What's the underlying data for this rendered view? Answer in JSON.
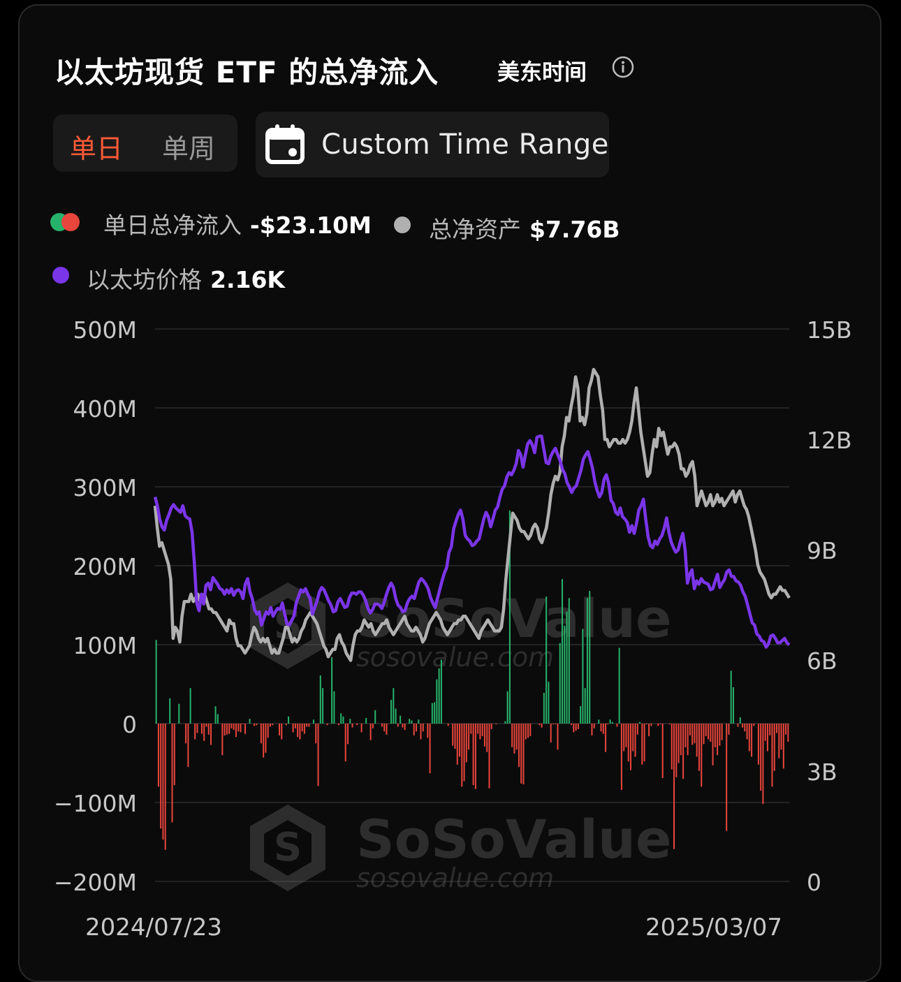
{
  "header": {
    "title": "以太坊现货 ETF 的总净流入",
    "timezone": "美东时间"
  },
  "tabs": [
    {
      "label": "单日",
      "active": true
    },
    {
      "label": "单周",
      "active": false
    }
  ],
  "custom_range": {
    "label": "Custom Time Range"
  },
  "legend": {
    "daily": {
      "label": "单日总净流入",
      "value": "-$23.10M"
    },
    "assets": {
      "label": "总净资产",
      "value": "$7.76B"
    },
    "price": {
      "label": "以太坊价格",
      "value": "2.16K"
    }
  },
  "watermark": {
    "brand": "SoSoValue",
    "site": "sosovalue.com"
  },
  "colors": {
    "positive": "#27b26b",
    "negative": "#e8453c",
    "assets_line": "#b0b0b0",
    "price_line": "#7b35e8",
    "active_tab": "#ff5a36"
  },
  "chart_data": {
    "type": "bar",
    "x_start": "2024/07/23",
    "x_end": "2025/03/07",
    "left_axis": {
      "ticks": [
        "500M",
        "400M",
        "300M",
        "200M",
        "100M",
        "0",
        "−100M",
        "−200M"
      ],
      "ylim": [
        -200,
        500
      ],
      "unit": "M"
    },
    "right_axis": {
      "ticks": [
        "15B",
        "12B",
        "9B",
        "6B",
        "3B",
        "0"
      ],
      "ylim": [
        0,
        15
      ],
      "unit": "B"
    },
    "grid": true,
    "series": [
      {
        "kind": "bar",
        "values": [
          106,
          -80,
          -133,
          -147,
          -160,
          0,
          32,
          -125,
          -78,
          0,
          25,
          0,
          0,
          -25,
          -55,
          45,
          0,
          -20,
          -12,
          0,
          -13,
          -22,
          -4,
          -14,
          -27,
          0,
          22,
          12,
          0,
          -40,
          -15,
          -14,
          -13,
          -6,
          -8,
          -17,
          -10,
          -11,
          -1,
          -13,
          0,
          6,
          0,
          -3,
          -2,
          0,
          -25,
          -43,
          -37,
          -18,
          -4,
          -2,
          0,
          0,
          -15,
          -20,
          0,
          -2,
          9,
          0,
          -11,
          -6,
          -17,
          -20,
          -10,
          -13,
          -4,
          -4,
          0,
          5,
          -25,
          -79,
          61,
          45,
          0,
          -2,
          0,
          84,
          41,
          0,
          -2,
          13,
          9,
          -48,
          -26,
          6,
          -5,
          0,
          -2,
          0,
          -11,
          0,
          7,
          0,
          -21,
          -6,
          17,
          0,
          0,
          -4,
          -10,
          -14,
          0,
          30,
          45,
          19,
          -4,
          10,
          -5,
          -8,
          0,
          6,
          4,
          -15,
          -10,
          5,
          -20,
          -10,
          0,
          -18,
          -63,
          26,
          27,
          56,
          70,
          81,
          0,
          0,
          -3,
          0,
          -28,
          -32,
          -52,
          -42,
          -80,
          -73,
          -49,
          -33,
          -13,
          -78,
          -83,
          -13,
          -20,
          -16,
          -29,
          -36,
          -82,
          -7,
          0,
          -1,
          0,
          0,
          0,
          3,
          41,
          270,
          -30,
          -38,
          -33,
          -55,
          -76,
          -77,
          -20,
          -18,
          -16,
          0,
          0,
          0,
          -2,
          -5,
          39,
          161,
          53,
          -24,
          -1,
          -1,
          -33,
          102,
          183,
          124,
          142,
          159,
          -2,
          -11,
          -9,
          -7,
          22,
          120,
          45,
          159,
          168,
          -15,
          -6,
          0,
          5,
          -10,
          -13,
          -36,
          -1,
          5,
          2,
          0,
          -4,
          96,
          -84,
          -35,
          -30,
          -48,
          -59,
          -35,
          -42,
          -14,
          2,
          -52,
          -48,
          -1,
          -16,
          -3,
          0,
          0,
          -3,
          -1,
          -69,
          0,
          0,
          -1,
          -58,
          -159,
          -68,
          -50,
          -40,
          -70,
          -30,
          -40,
          -15,
          -27,
          -25,
          -42,
          -60,
          -80,
          -26,
          -16,
          -20,
          -23,
          -53,
          -30,
          -40,
          -28,
          -21,
          0,
          -136,
          -14,
          67,
          46,
          0,
          -4,
          8,
          -5,
          -10,
          -20,
          -35,
          -42,
          -3,
          0,
          -52,
          -85,
          -102,
          -22,
          -35,
          -15,
          -80,
          -60,
          -12,
          -44,
          -33,
          -57,
          -14,
          -23
        ]
      },
      {
        "kind": "line",
        "name": "总净资产",
        "values": [
          10.2,
          9.6,
          9.1,
          9.2,
          9.0,
          8.8,
          8.6,
          8.2,
          6.6,
          6.9,
          6.8,
          6.5,
          7.2,
          7.6,
          7.6,
          7.6,
          7.8,
          7.6,
          7.7,
          7.8,
          7.6,
          7.7,
          7.8,
          7.6,
          7.4,
          7.4,
          7.3,
          7.3,
          7.2,
          7.1,
          7.0,
          6.9,
          6.8,
          7.1,
          7.0,
          7.0,
          6.6,
          6.4,
          6.4,
          6.3,
          6.2,
          6.3,
          6.4,
          6.7,
          6.9,
          6.8,
          6.6,
          6.5,
          6.6,
          6.5,
          6.6,
          6.4,
          6.2,
          6.3,
          6.2,
          6.2,
          6.4,
          6.6,
          6.9,
          6.9,
          6.7,
          6.5,
          6.6,
          6.5,
          6.6,
          6.8,
          6.9,
          7.1,
          7.2,
          7.3,
          7.2,
          7.1,
          7.0,
          6.8,
          6.6,
          6.4,
          6.3,
          6.1,
          6.2,
          6.3,
          6.3,
          6.6,
          6.7,
          6.5,
          6.4,
          6.2,
          6.1,
          6.0,
          6.4,
          6.7,
          6.8,
          6.8,
          6.9,
          7.1,
          7.0,
          6.9,
          7.0,
          6.8,
          6.7,
          6.8,
          6.9,
          7.0,
          7.0,
          7.1,
          6.9,
          6.8,
          6.7,
          6.8,
          6.9,
          7.0,
          7.1,
          7.2,
          7.0,
          6.9,
          6.8,
          6.8,
          6.9,
          6.8,
          6.7,
          6.5,
          6.6,
          6.8,
          7.0,
          7.1,
          7.2,
          7.3,
          7.2,
          7.1,
          6.9,
          6.8,
          6.7,
          6.8,
          6.9,
          7.0,
          7.0,
          7.1,
          7.1,
          7.2,
          7.2,
          7.1,
          7.0,
          6.9,
          6.8,
          6.7,
          6.6,
          6.8,
          6.9,
          7.0,
          7.1,
          7.0,
          6.9,
          6.8,
          6.8,
          6.8,
          6.9,
          7.4,
          8.2,
          8.8,
          9.4,
          10.0,
          9.9,
          9.8,
          9.6,
          9.5,
          9.5,
          9.4,
          9.3,
          9.4,
          9.6,
          9.7,
          9.6,
          9.3,
          9.2,
          9.4,
          9.6,
          10.0,
          10.5,
          10.8,
          11.0,
          10.9,
          11.1,
          11.8,
          12.1,
          12.6,
          12.5,
          12.9,
          13.2,
          13.7,
          13.4,
          12.5,
          12.6,
          12.4,
          12.7,
          13.4,
          13.6,
          13.9,
          13.8,
          13.7,
          13.2,
          12.8,
          12.0,
          12.0,
          11.8,
          11.9,
          12.0,
          12.0,
          11.9,
          11.9,
          12.0,
          11.9,
          12.0,
          12.2,
          12.5,
          13.0,
          13.4,
          12.8,
          12.2,
          11.8,
          11.4,
          11.0,
          11.1,
          11.6,
          12.0,
          11.8,
          12.3,
          12.1,
          12.2,
          11.9,
          11.6,
          11.8,
          11.8,
          11.9,
          11.8,
          11.6,
          11.2,
          11.2,
          11.0,
          11.1,
          11.3,
          11.4,
          11.0,
          10.2,
          10.4,
          10.6,
          10.4,
          10.2,
          10.3,
          10.5,
          10.2,
          10.3,
          10.5,
          10.3,
          10.4,
          10.2,
          10.3,
          10.4,
          10.5,
          10.6,
          10.3,
          10.5,
          10.6,
          10.4,
          10.2,
          10.1,
          9.9,
          9.6,
          9.3,
          9.0,
          8.6,
          8.4,
          8.3,
          8.2,
          8.0,
          7.8,
          7.7,
          7.8,
          7.8,
          7.9,
          8.0,
          7.9,
          7.9,
          7.8,
          7.7
        ]
      },
      {
        "kind": "line",
        "name": "以太坊价格",
        "values": [
          3480,
          3400,
          3280,
          3210,
          3180,
          3270,
          3320,
          3380,
          3410,
          3380,
          3360,
          3340,
          3400,
          3310,
          3290,
          3280,
          3160,
          2880,
          2520,
          2450,
          2600,
          2510,
          2680,
          2700,
          2640,
          2750,
          2720,
          2690,
          2650,
          2640,
          2600,
          2640,
          2610,
          2650,
          2590,
          2630,
          2640,
          2620,
          2560,
          2690,
          2740,
          2620,
          2560,
          2460,
          2420,
          2440,
          2320,
          2380,
          2440,
          2420,
          2480,
          2400,
          2440,
          2470,
          2460,
          2520,
          2420,
          2330,
          2320,
          2360,
          2400,
          2520,
          2580,
          2640,
          2620,
          2650,
          2600,
          2560,
          2420,
          2480,
          2540,
          2620,
          2660,
          2640,
          2590,
          2540,
          2500,
          2440,
          2450,
          2530,
          2560,
          2520,
          2480,
          2490,
          2570,
          2610,
          2610,
          2600,
          2620,
          2620,
          2590,
          2540,
          2470,
          2430,
          2460,
          2510,
          2510,
          2500,
          2470,
          2530,
          2600,
          2660,
          2700,
          2660,
          2560,
          2500,
          2480,
          2440,
          2450,
          2520,
          2560,
          2580,
          2560,
          2640,
          2710,
          2740,
          2720,
          2690,
          2650,
          2570,
          2520,
          2480,
          2560,
          2640,
          2720,
          2790,
          2840,
          2980,
          3030,
          3190,
          3260,
          3320,
          3360,
          3280,
          3130,
          3100,
          3080,
          3040,
          3050,
          3080,
          3100,
          3190,
          3280,
          3340,
          3300,
          3210,
          3280,
          3360,
          3390,
          3480,
          3550,
          3580,
          3660,
          3700,
          3680,
          3720,
          3780,
          3900,
          3860,
          3750,
          3860,
          3960,
          3990,
          3950,
          3880,
          4020,
          4030,
          4030,
          3910,
          3790,
          3780,
          3850,
          3890,
          3920,
          3860,
          3810,
          3730,
          3690,
          3610,
          3570,
          3520,
          3560,
          3580,
          3650,
          3720,
          3820,
          3860,
          3890,
          3820,
          3740,
          3620,
          3540,
          3480,
          3520,
          3640,
          3680,
          3600,
          3450,
          3420,
          3340,
          3320,
          3380,
          3300,
          3280,
          3250,
          3160,
          3220,
          3150,
          3240,
          3360,
          3400,
          3460,
          3280,
          3120,
          3040,
          3020,
          3080,
          3050,
          3100,
          3130,
          3200,
          3290,
          3160,
          3070,
          3020,
          2980,
          3000,
          3080,
          3150,
          3000,
          2700,
          2780,
          2820,
          2650,
          2720,
          2690,
          2740,
          2710,
          2700,
          2690,
          2640,
          2650,
          2720,
          2780,
          2660,
          2700,
          2730,
          2800,
          2820,
          2760,
          2760,
          2720,
          2710,
          2680,
          2620,
          2580,
          2500,
          2420,
          2340,
          2320,
          2240,
          2220,
          2180,
          2170,
          2120,
          2150,
          2220,
          2230,
          2200,
          2160,
          2160,
          2180,
          2200,
          2160,
          2140
        ]
      }
    ]
  }
}
